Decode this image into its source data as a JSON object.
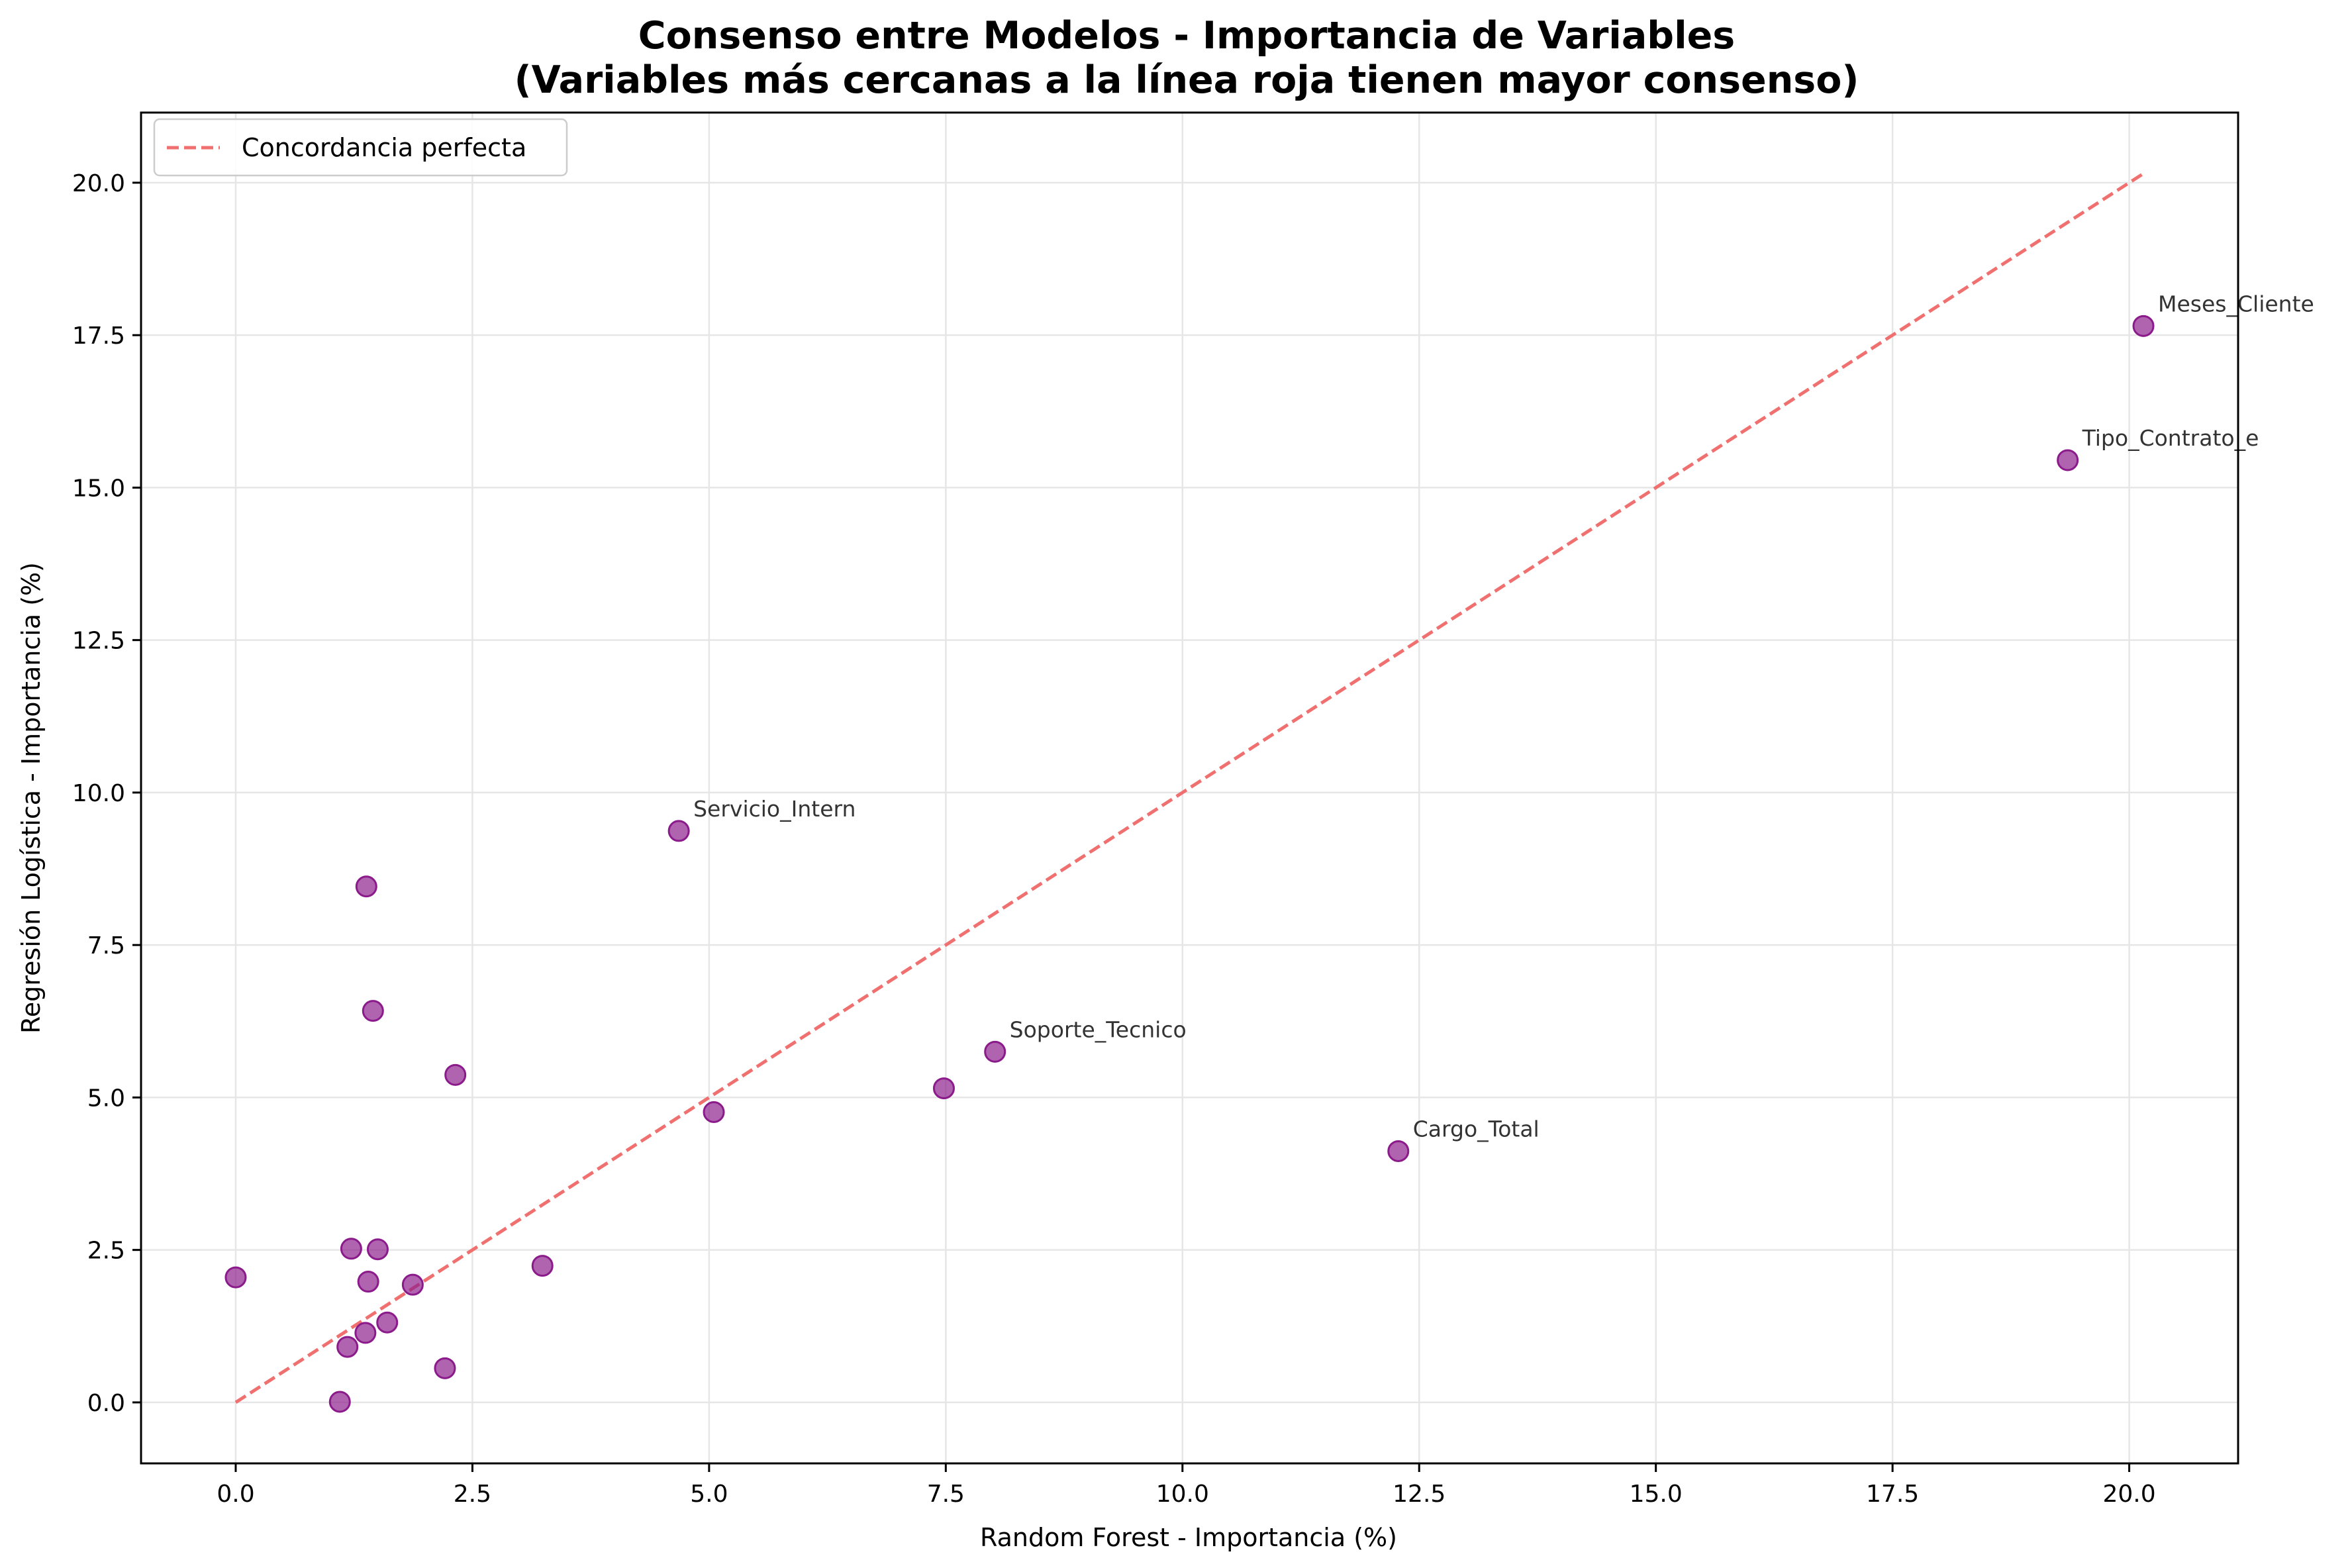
{
  "chart_data": {
    "type": "scatter",
    "title": "Consenso entre Modelos - Importancia de Variables",
    "subtitle": "(Variables más cercanas a la línea roja tienen mayor consenso)",
    "xlabel": "Random Forest - Importancia (%)",
    "ylabel": "Regresión Logística - Importancia (%)",
    "xlim": [
      -1.0,
      21.15
    ],
    "ylim": [
      -1.0,
      21.15
    ],
    "xticks": [
      0.0,
      2.5,
      5.0,
      7.5,
      10.0,
      12.5,
      15.0,
      17.5,
      20.0
    ],
    "yticks": [
      0.0,
      2.5,
      5.0,
      7.5,
      10.0,
      12.5,
      15.0,
      17.5,
      20.0
    ],
    "xtick_labels": [
      "0.0",
      "2.5",
      "5.0",
      "7.5",
      "10.0",
      "12.5",
      "15.0",
      "17.5",
      "20.0"
    ],
    "ytick_labels": [
      "0.0",
      "2.5",
      "5.0",
      "7.5",
      "10.0",
      "12.5",
      "15.0",
      "17.5",
      "20.0"
    ],
    "grid": true,
    "legend_position": "top-left",
    "colors": {
      "points": "#8b1a8b",
      "reference_line": "#f07070",
      "grid": "#e6e6e6"
    },
    "reference_line": {
      "name": "Concordancia perfecta",
      "style": "dashed",
      "from": [
        0.0,
        0.0
      ],
      "to": [
        20.15,
        20.15
      ]
    },
    "points": [
      {
        "x": 20.15,
        "y": 17.65,
        "label": "Meses_Cliente"
      },
      {
        "x": 19.35,
        "y": 15.45,
        "label": "Tipo_Contrato_e"
      },
      {
        "x": 4.68,
        "y": 9.37,
        "label": "Servicio_Intern"
      },
      {
        "x": 8.02,
        "y": 5.75,
        "label": "Soporte_Tecnico"
      },
      {
        "x": 12.28,
        "y": 4.12,
        "label": "Cargo_Total"
      },
      {
        "x": 7.48,
        "y": 5.15,
        "label": ""
      },
      {
        "x": 5.05,
        "y": 4.76,
        "label": ""
      },
      {
        "x": 1.38,
        "y": 8.46,
        "label": ""
      },
      {
        "x": 1.45,
        "y": 6.42,
        "label": ""
      },
      {
        "x": 2.32,
        "y": 5.37,
        "label": ""
      },
      {
        "x": 3.24,
        "y": 2.24,
        "label": ""
      },
      {
        "x": 0.0,
        "y": 2.05,
        "label": ""
      },
      {
        "x": 1.22,
        "y": 2.52,
        "label": ""
      },
      {
        "x": 1.5,
        "y": 2.51,
        "label": ""
      },
      {
        "x": 1.4,
        "y": 1.98,
        "label": ""
      },
      {
        "x": 1.87,
        "y": 1.93,
        "label": ""
      },
      {
        "x": 1.6,
        "y": 1.31,
        "label": ""
      },
      {
        "x": 1.37,
        "y": 1.14,
        "label": ""
      },
      {
        "x": 1.18,
        "y": 0.91,
        "label": ""
      },
      {
        "x": 2.21,
        "y": 0.56,
        "label": ""
      },
      {
        "x": 1.1,
        "y": 0.01,
        "label": ""
      }
    ]
  }
}
